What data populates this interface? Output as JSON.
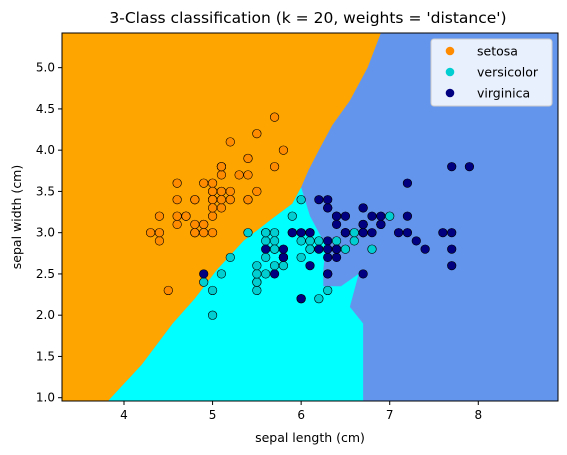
{
  "chart_data": {
    "type": "scatter",
    "title": "3-Class classification (k = 20, weights = 'distance')",
    "xlabel": "sepal length (cm)",
    "ylabel": "sepal width (cm)",
    "xlim": [
      3.3,
      8.9
    ],
    "ylim": [
      0.96,
      5.42
    ],
    "xticks": [
      "4",
      "5",
      "6",
      "7",
      "8"
    ],
    "xtick_values": [
      4,
      5,
      6,
      7,
      8
    ],
    "yticks": [
      "1.0",
      "1.5",
      "2.0",
      "2.5",
      "3.0",
      "3.5",
      "4.0",
      "4.5",
      "5.0"
    ],
    "ytick_values": [
      1.0,
      1.5,
      2.0,
      2.5,
      3.0,
      3.5,
      4.0,
      4.5,
      5.0
    ],
    "grid": false,
    "legend_position": "top-right",
    "region_colors": {
      "setosa": "#FFA500",
      "versicolor": "#00FFFF",
      "virginica": "#6495ED"
    },
    "regions": {
      "setosa_boundary": [
        [
          3.82,
          0.96
        ],
        [
          4.2,
          1.4
        ],
        [
          4.55,
          1.9
        ],
        [
          4.8,
          2.2
        ],
        [
          5.05,
          2.55
        ],
        [
          5.35,
          2.9
        ],
        [
          5.65,
          3.15
        ],
        [
          5.9,
          3.35
        ],
        [
          6.0,
          3.55
        ],
        [
          6.08,
          3.75
        ],
        [
          6.2,
          4.0
        ],
        [
          6.35,
          4.3
        ],
        [
          6.55,
          4.6
        ],
        [
          6.75,
          5.0
        ],
        [
          6.9,
          5.42
        ]
      ],
      "virginica_boundary": [
        [
          6.0,
          3.55
        ],
        [
          6.1,
          3.2
        ],
        [
          6.2,
          3.0
        ],
        [
          6.28,
          2.85
        ],
        [
          6.25,
          2.55
        ],
        [
          6.25,
          2.35
        ],
        [
          6.45,
          2.35
        ],
        [
          6.65,
          2.5
        ],
        [
          6.55,
          2.1
        ],
        [
          6.7,
          1.9
        ],
        [
          6.7,
          0.96
        ]
      ]
    },
    "series": [
      {
        "name": "setosa",
        "color": "#FF8C00",
        "points": [
          [
            5.1,
            3.5
          ],
          [
            4.9,
            3.0
          ],
          [
            4.7,
            3.2
          ],
          [
            4.6,
            3.1
          ],
          [
            5.0,
            3.6
          ],
          [
            5.4,
            3.9
          ],
          [
            4.6,
            3.4
          ],
          [
            5.0,
            3.4
          ],
          [
            4.4,
            2.9
          ],
          [
            4.9,
            3.1
          ],
          [
            5.4,
            3.7
          ],
          [
            4.8,
            3.4
          ],
          [
            4.8,
            3.0
          ],
          [
            4.3,
            3.0
          ],
          [
            5.8,
            4.0
          ],
          [
            5.7,
            4.4
          ],
          [
            5.4,
            3.9
          ],
          [
            5.1,
            3.5
          ],
          [
            5.7,
            3.8
          ],
          [
            5.1,
            3.8
          ],
          [
            5.4,
            3.4
          ],
          [
            5.1,
            3.7
          ],
          [
            4.6,
            3.6
          ],
          [
            5.1,
            3.3
          ],
          [
            4.8,
            3.4
          ],
          [
            5.0,
            3.0
          ],
          [
            5.0,
            3.4
          ],
          [
            5.2,
            3.5
          ],
          [
            5.2,
            3.4
          ],
          [
            4.7,
            3.2
          ],
          [
            4.8,
            3.1
          ],
          [
            5.4,
            3.4
          ],
          [
            5.2,
            4.1
          ],
          [
            5.5,
            4.2
          ],
          [
            4.9,
            3.1
          ],
          [
            5.0,
            3.2
          ],
          [
            5.5,
            3.5
          ],
          [
            4.9,
            3.6
          ],
          [
            4.4,
            3.0
          ],
          [
            5.1,
            3.4
          ],
          [
            5.0,
            3.5
          ],
          [
            4.5,
            2.3
          ],
          [
            4.4,
            3.2
          ],
          [
            5.0,
            3.5
          ],
          [
            5.1,
            3.8
          ],
          [
            4.8,
            3.0
          ],
          [
            5.1,
            3.8
          ],
          [
            4.6,
            3.2
          ],
          [
            5.3,
            3.7
          ],
          [
            5.0,
            3.3
          ]
        ]
      },
      {
        "name": "versicolor",
        "color": "#00CED1",
        "points": [
          [
            7.0,
            3.2
          ],
          [
            6.4,
            3.2
          ],
          [
            6.9,
            3.1
          ],
          [
            5.5,
            2.3
          ],
          [
            6.5,
            2.8
          ],
          [
            5.7,
            2.8
          ],
          [
            6.3,
            3.3
          ],
          [
            4.9,
            2.4
          ],
          [
            6.6,
            2.9
          ],
          [
            5.2,
            2.7
          ],
          [
            5.0,
            2.0
          ],
          [
            5.9,
            3.0
          ],
          [
            6.0,
            2.2
          ],
          [
            6.1,
            2.9
          ],
          [
            5.6,
            2.9
          ],
          [
            6.7,
            3.1
          ],
          [
            5.6,
            3.0
          ],
          [
            5.8,
            2.7
          ],
          [
            6.2,
            2.2
          ],
          [
            5.6,
            2.5
          ],
          [
            5.9,
            3.2
          ],
          [
            6.1,
            2.8
          ],
          [
            6.3,
            2.5
          ],
          [
            6.1,
            2.8
          ],
          [
            6.4,
            2.9
          ],
          [
            6.6,
            3.0
          ],
          [
            6.8,
            2.8
          ],
          [
            6.7,
            3.0
          ],
          [
            6.0,
            2.9
          ],
          [
            5.7,
            2.6
          ],
          [
            5.5,
            2.4
          ],
          [
            5.5,
            2.4
          ],
          [
            5.8,
            2.7
          ],
          [
            6.0,
            2.7
          ],
          [
            5.4,
            3.0
          ],
          [
            6.0,
            3.4
          ],
          [
            6.7,
            3.1
          ],
          [
            6.3,
            2.3
          ],
          [
            5.6,
            3.0
          ],
          [
            5.5,
            2.5
          ],
          [
            5.5,
            2.6
          ],
          [
            6.1,
            3.0
          ],
          [
            5.8,
            2.6
          ],
          [
            5.0,
            2.3
          ],
          [
            5.6,
            2.7
          ],
          [
            5.7,
            3.0
          ],
          [
            5.7,
            2.9
          ],
          [
            6.2,
            2.9
          ],
          [
            5.1,
            2.5
          ],
          [
            5.7,
            2.8
          ]
        ]
      },
      {
        "name": "virginica",
        "color": "#000080",
        "points": [
          [
            6.3,
            3.3
          ],
          [
            5.8,
            2.7
          ],
          [
            7.1,
            3.0
          ],
          [
            6.3,
            2.9
          ],
          [
            6.5,
            3.0
          ],
          [
            7.6,
            3.0
          ],
          [
            4.9,
            2.5
          ],
          [
            7.3,
            2.9
          ],
          [
            6.7,
            2.5
          ],
          [
            7.2,
            3.6
          ],
          [
            6.5,
            3.2
          ],
          [
            6.4,
            2.7
          ],
          [
            6.8,
            3.0
          ],
          [
            5.7,
            2.5
          ],
          [
            5.8,
            2.8
          ],
          [
            6.4,
            3.2
          ],
          [
            6.5,
            3.0
          ],
          [
            7.7,
            3.8
          ],
          [
            7.7,
            2.6
          ],
          [
            6.0,
            2.2
          ],
          [
            6.9,
            3.2
          ],
          [
            5.6,
            2.8
          ],
          [
            7.7,
            2.8
          ],
          [
            6.3,
            2.7
          ],
          [
            6.7,
            3.3
          ],
          [
            7.2,
            3.2
          ],
          [
            6.2,
            2.8
          ],
          [
            6.1,
            3.0
          ],
          [
            6.4,
            2.8
          ],
          [
            7.2,
            3.0
          ],
          [
            7.4,
            2.8
          ],
          [
            7.9,
            3.8
          ],
          [
            6.4,
            2.8
          ],
          [
            6.3,
            2.8
          ],
          [
            6.1,
            2.6
          ],
          [
            7.7,
            3.0
          ],
          [
            6.3,
            3.4
          ],
          [
            6.4,
            3.1
          ],
          [
            6.0,
            3.0
          ],
          [
            6.9,
            3.1
          ],
          [
            6.7,
            3.1
          ],
          [
            6.9,
            3.1
          ],
          [
            5.8,
            2.7
          ],
          [
            6.8,
            3.2
          ],
          [
            6.7,
            3.3
          ],
          [
            6.7,
            3.0
          ],
          [
            6.3,
            2.5
          ],
          [
            6.5,
            3.0
          ],
          [
            6.2,
            3.4
          ],
          [
            5.9,
            3.0
          ]
        ]
      }
    ],
    "legend": [
      "setosa",
      "versicolor",
      "virginica"
    ]
  }
}
